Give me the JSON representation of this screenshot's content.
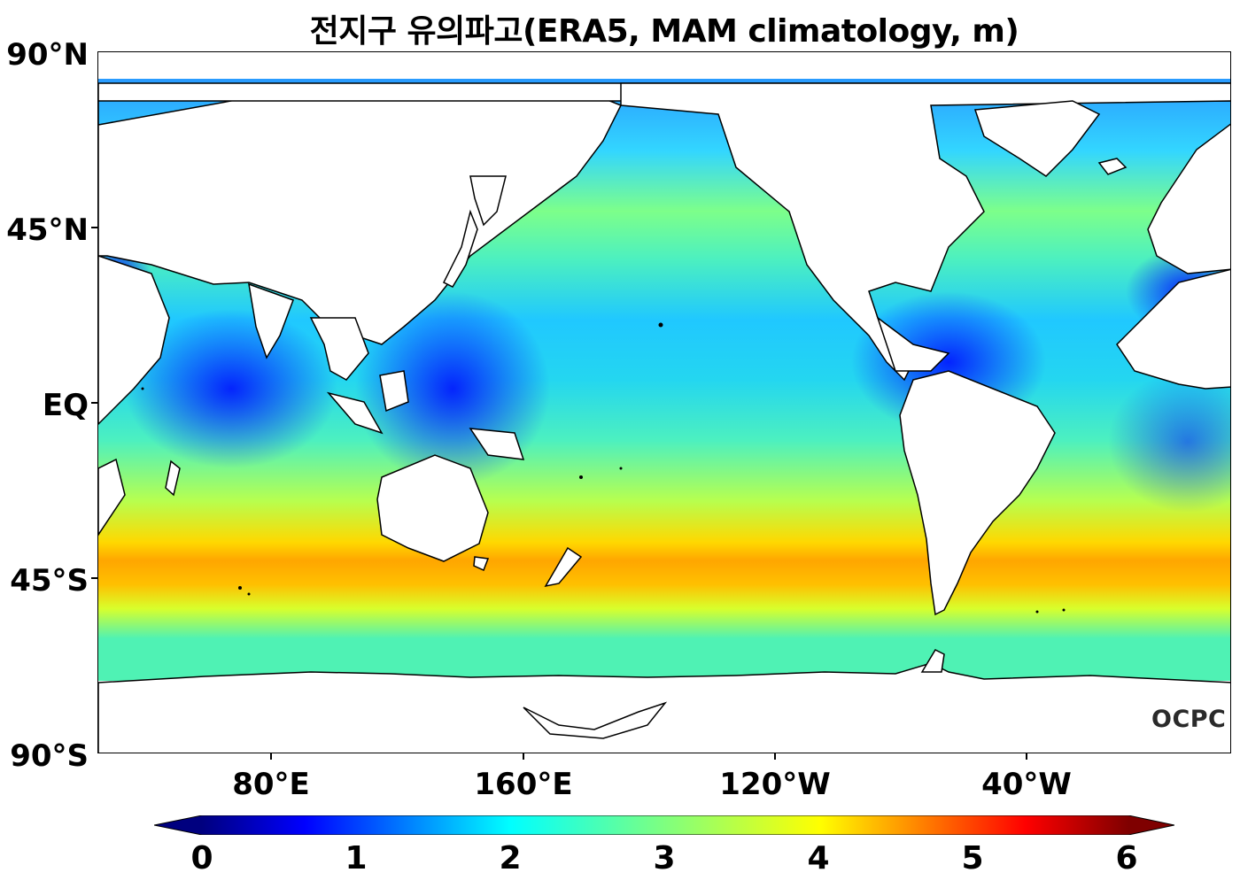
{
  "title": "전지구 유의파고(ERA5, MAM climatology, m)",
  "y_axis": {
    "ticks": [
      "90°N",
      "45°N",
      "EQ",
      "45°S",
      "90°S"
    ]
  },
  "x_axis": {
    "ticks": [
      "80°E",
      "160°E",
      "120°W",
      "40°W"
    ]
  },
  "colorbar": {
    "ticks": [
      "0",
      "1",
      "2",
      "3",
      "4",
      "5",
      "6"
    ],
    "range": [
      0,
      6
    ],
    "colormap": "jet",
    "extend": "both",
    "colors": [
      "#00007f",
      "#0000ff",
      "#007fff",
      "#00ffff",
      "#7fff7f",
      "#ffff00",
      "#ff7f00",
      "#ff0000",
      "#7f0000"
    ]
  },
  "logo_text": "OCPC",
  "map": {
    "projection": "equirectangular",
    "variable": "significant wave height",
    "units": "m",
    "season": "MAM",
    "lon_ticks_deg": [
      80,
      160,
      240,
      320
    ],
    "lat_ticks_deg": [
      90,
      45,
      0,
      -45,
      -90
    ],
    "land_color": "#ffffff",
    "coast_color": "#000000"
  }
}
